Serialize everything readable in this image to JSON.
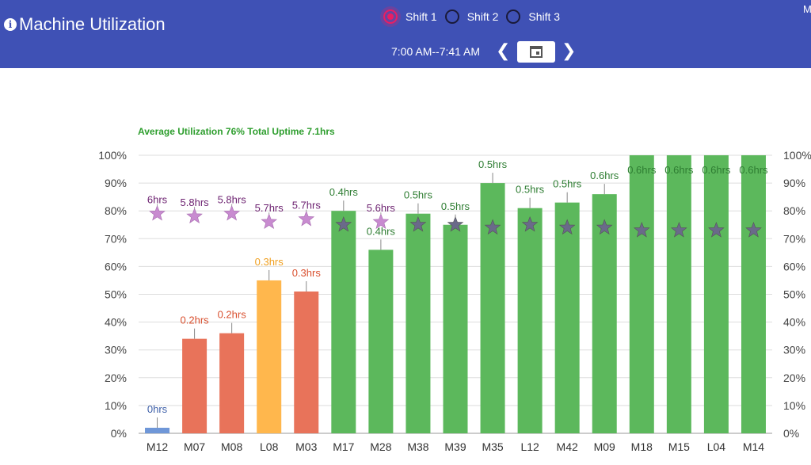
{
  "header": {
    "title": "Machine Utilization",
    "shifts": [
      {
        "label": "Shift 1",
        "selected": true
      },
      {
        "label": "Shift 2",
        "selected": false
      },
      {
        "label": "Shift 3",
        "selected": false
      }
    ],
    "time_range": "7:00 AM--7:41 AM",
    "corner_text": "M",
    "prev_icon": "chevron-left-icon",
    "next_icon": "chevron-right-icon",
    "calendar_icon": "calendar-icon",
    "info_icon": "info-icon"
  },
  "summary": "Average Utilization 76% Total Uptime 7.1hrs",
  "colors": {
    "header": "#3f51b5",
    "low": "#e8735a",
    "mid": "#ffb74d",
    "high": "#5cb85c",
    "blue": "#6f97d8",
    "star": "#c88bd0",
    "star_dark": "#6a6a8a"
  },
  "chart_data": {
    "type": "bar",
    "categories": [
      "M12",
      "M07",
      "M08",
      "L08",
      "M03",
      "M17",
      "M28",
      "M38",
      "M39",
      "M35",
      "L12",
      "M42",
      "M09",
      "M18",
      "M15",
      "L04",
      "M14"
    ],
    "values": [
      2,
      34,
      36,
      55,
      51,
      80,
      66,
      79,
      75,
      90,
      81,
      83,
      86,
      100,
      100,
      100,
      100
    ],
    "bar_labels": [
      "0hrs",
      "0.2hrs",
      "0.2hrs",
      "0.3hrs",
      "0.3hrs",
      "0.4hrs",
      "0.4hrs",
      "0.5hrs",
      "0.5hrs",
      "0.5hrs",
      "0.5hrs",
      "0.5hrs",
      "0.6hrs",
      "0.6hrs",
      "0.6hrs",
      "0.6hrs",
      "0.6hrs"
    ],
    "bar_colors": [
      "#6f97d8",
      "#e8735a",
      "#e8735a",
      "#ffb74d",
      "#e8735a",
      "#5cb85c",
      "#5cb85c",
      "#5cb85c",
      "#5cb85c",
      "#5cb85c",
      "#5cb85c",
      "#5cb85c",
      "#5cb85c",
      "#5cb85c",
      "#5cb85c",
      "#5cb85c",
      "#5cb85c"
    ],
    "label_colors": [
      "#3d5fa8",
      "#d9502f",
      "#d9502f",
      "#f0a020",
      "#d9502f",
      "#2e7d32",
      "#2e7d32",
      "#2e7d32",
      "#2e7d32",
      "#2e7d32",
      "#2e7d32",
      "#2e7d32",
      "#2e7d32",
      "#2e7d32",
      "#2e7d32",
      "#2e7d32",
      "#2e7d32"
    ],
    "stars": [
      79,
      78,
      79,
      76,
      77,
      75,
      76,
      75,
      75,
      74,
      75,
      74,
      74,
      73,
      73,
      73,
      73
    ],
    "star_labels": [
      "6hrs",
      "5.8hrs",
      "5.8hrs",
      "5.7hrs",
      "5.7hrs",
      "",
      "5.6hrs",
      "",
      "",
      "",
      "",
      "",
      "",
      "",
      "",
      "",
      ""
    ],
    "ylim": [
      0,
      100
    ],
    "y_ticks": [
      0,
      10,
      20,
      30,
      40,
      50,
      60,
      70,
      80,
      90,
      100
    ],
    "y_tick_labels": [
      "0%",
      "10%",
      "20%",
      "30%",
      "40%",
      "50%",
      "60%",
      "70%",
      "80%",
      "90%",
      "100%"
    ],
    "grid": true
  }
}
